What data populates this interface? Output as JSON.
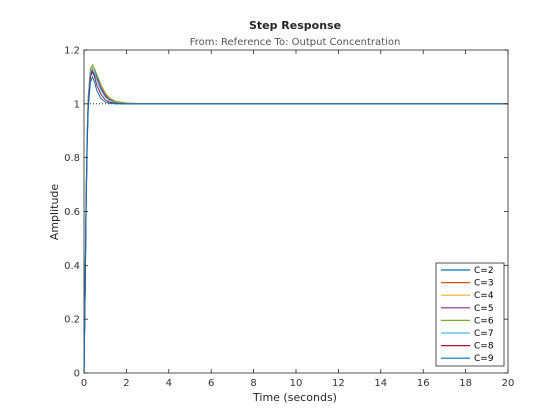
{
  "chart_data": {
    "type": "line",
    "title": "Step Response",
    "subtitle": "From: Reference  To: Output Concentration",
    "xlabel": "Time (seconds)",
    "ylabel": "Amplitude",
    "xlim": [
      0,
      20
    ],
    "ylim": [
      0,
      1.2
    ],
    "xticks": [
      0,
      2,
      4,
      6,
      8,
      10,
      12,
      14,
      16,
      18,
      20
    ],
    "yticks": [
      0,
      0.2,
      0.4,
      0.6,
      0.8,
      1,
      1.2
    ],
    "xtick_labels": [
      "0",
      "2",
      "4",
      "6",
      "8",
      "10",
      "12",
      "14",
      "16",
      "18",
      "20"
    ],
    "ytick_labels": [
      "0",
      "0.2",
      "0.4",
      "0.6",
      "0.8",
      "1",
      "1.2"
    ],
    "reference_line": 1,
    "legend_location": "bottom-right",
    "series": [
      {
        "name": "C=2",
        "color": "#0072BD",
        "x": [
          0,
          0.05,
          0.1,
          0.15,
          0.2,
          0.3,
          0.4,
          0.5,
          0.6,
          0.8,
          1.0,
          1.2,
          1.5,
          2.0,
          2.5,
          3.0,
          4.0,
          5.0,
          20
        ],
        "y": [
          0,
          0.28,
          0.62,
          0.86,
          1.0,
          1.1,
          1.12,
          1.11,
          1.09,
          1.05,
          1.03,
          1.015,
          1.007,
          1.002,
          1.001,
          1.0,
          1.0,
          1.0,
          1.0
        ]
      },
      {
        "name": "C=3",
        "color": "#D95319",
        "x": [
          0,
          0.05,
          0.1,
          0.15,
          0.2,
          0.3,
          0.4,
          0.5,
          0.6,
          0.8,
          1.0,
          1.2,
          1.5,
          2.0,
          2.5,
          3.0,
          4.0,
          5.0,
          20
        ],
        "y": [
          0,
          0.3,
          0.64,
          0.87,
          1.01,
          1.11,
          1.13,
          1.12,
          1.1,
          1.06,
          1.035,
          1.02,
          1.009,
          1.003,
          1.001,
          1.0,
          1.0,
          1.0,
          1.0
        ]
      },
      {
        "name": "C=4",
        "color": "#EDB120",
        "x": [
          0,
          0.05,
          0.1,
          0.15,
          0.2,
          0.3,
          0.4,
          0.5,
          0.6,
          0.8,
          1.0,
          1.2,
          1.5,
          2.0,
          2.5,
          3.0,
          4.0,
          5.0,
          20
        ],
        "y": [
          0,
          0.31,
          0.66,
          0.88,
          1.02,
          1.12,
          1.14,
          1.13,
          1.11,
          1.07,
          1.04,
          1.022,
          1.01,
          1.003,
          1.001,
          1.0,
          1.0,
          1.0,
          1.0
        ]
      },
      {
        "name": "C=5",
        "color": "#7E2F8E",
        "x": [
          0,
          0.05,
          0.1,
          0.15,
          0.2,
          0.3,
          0.4,
          0.5,
          0.6,
          0.8,
          1.0,
          1.2,
          1.5,
          2.0,
          2.5,
          3.0,
          4.0,
          20
        ],
        "y": [
          0,
          0.3,
          0.65,
          0.88,
          1.01,
          1.11,
          1.13,
          1.12,
          1.1,
          1.06,
          1.03,
          1.017,
          1.007,
          1.002,
          1.0,
          1.0,
          1.0,
          1.0
        ]
      },
      {
        "name": "C=6",
        "color": "#77AC30",
        "x": [
          0,
          0.05,
          0.1,
          0.15,
          0.2,
          0.3,
          0.4,
          0.5,
          0.6,
          0.8,
          1.0,
          1.2,
          1.5,
          2.0,
          2.5,
          3.0,
          20
        ],
        "y": [
          0,
          0.32,
          0.67,
          0.89,
          1.03,
          1.13,
          1.145,
          1.13,
          1.11,
          1.07,
          1.04,
          1.02,
          1.008,
          1.002,
          1.0,
          1.0,
          1.0
        ]
      },
      {
        "name": "C=7",
        "color": "#4DBEEE",
        "x": [
          0,
          0.05,
          0.1,
          0.15,
          0.2,
          0.3,
          0.4,
          0.5,
          0.6,
          0.8,
          1.0,
          1.2,
          1.5,
          2.0,
          2.5,
          20
        ],
        "y": [
          0,
          0.3,
          0.65,
          0.88,
          1.02,
          1.12,
          1.13,
          1.12,
          1.09,
          1.05,
          1.025,
          1.012,
          1.004,
          1.001,
          1.0,
          1.0
        ]
      },
      {
        "name": "C=8",
        "color": "#A2142F",
        "x": [
          0,
          0.05,
          0.1,
          0.15,
          0.2,
          0.3,
          0.4,
          0.5,
          0.6,
          0.8,
          1.0,
          1.2,
          1.5,
          2.0,
          20
        ],
        "y": [
          0,
          0.29,
          0.63,
          0.86,
          1.0,
          1.1,
          1.12,
          1.1,
          1.07,
          1.035,
          1.015,
          1.006,
          1.002,
          1.0,
          1.0
        ]
      },
      {
        "name": "C=9",
        "color": "#0072BD",
        "x": [
          0,
          0.05,
          0.1,
          0.15,
          0.2,
          0.3,
          0.4,
          0.5,
          0.6,
          0.8,
          1.0,
          1.2,
          1.5,
          20
        ],
        "y": [
          0,
          0.27,
          0.6,
          0.84,
          0.98,
          1.08,
          1.1,
          1.08,
          1.05,
          1.02,
          1.007,
          1.002,
          1.0,
          1.0
        ]
      }
    ]
  }
}
